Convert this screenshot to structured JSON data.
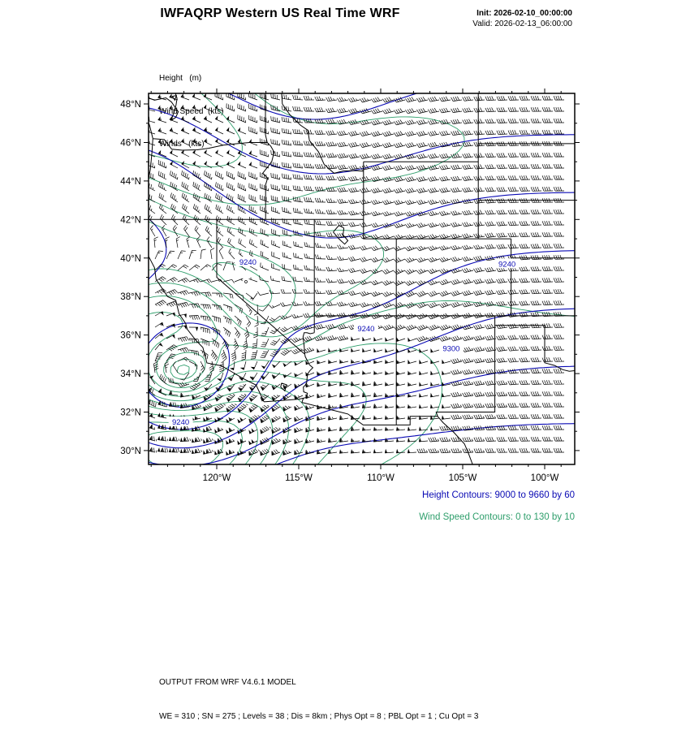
{
  "header": {
    "title": "IWFAQRP Western US Real Time WRF",
    "init_line": "Init: 2026-02-10_00:00:00",
    "valid_line": "Valid: 2026-02-13_06:00:00"
  },
  "field_legend": {
    "line1": "Height   (m)",
    "line2": "Wind Speed  (kts)",
    "line3": "Winds   (kts)"
  },
  "annotations": {
    "height_note": "Height Contours: 9000 to 9660 by 60",
    "wind_note": "Wind Speed Contours: 0 to 130 by 10"
  },
  "footer": {
    "line1": "OUTPUT FROM WRF V4.6.1 MODEL",
    "line2": "WE = 310 ; SN = 275 ; Levels = 38 ; Dis = 8km ; Phys Opt = 8 ; PBL Opt = 1 ; Cu Opt = 3"
  },
  "chart_data": {
    "type": "contour_map",
    "title": "IWFAQRP Western US Real Time WRF",
    "region": "Western US",
    "projection_extent": {
      "lon_min": -124.16,
      "lon_max": -98.17,
      "lat_min": 29.28,
      "lat_max": 48.55
    },
    "x_axis": {
      "ticks": [
        {
          "lon": -120,
          "label": "120°W"
        },
        {
          "lon": -115,
          "label": "115°W"
        },
        {
          "lon": -110,
          "label": "110°W"
        },
        {
          "lon": -105,
          "label": "105°W"
        },
        {
          "lon": -100,
          "label": "100°W"
        }
      ]
    },
    "y_axis": {
      "ticks": [
        {
          "lat": 48,
          "label": "48°N"
        },
        {
          "lat": 46,
          "label": "46°N"
        },
        {
          "lat": 44,
          "label": "44°N"
        },
        {
          "lat": 42,
          "label": "42°N"
        },
        {
          "lat": 40,
          "label": "40°N"
        },
        {
          "lat": 38,
          "label": "38°N"
        },
        {
          "lat": 36,
          "label": "36°N"
        },
        {
          "lat": 34,
          "label": "34°N"
        },
        {
          "lat": 32,
          "label": "32°N"
        },
        {
          "lat": 30,
          "label": "30°N"
        }
      ]
    },
    "height_contours": {
      "units": "m",
      "start": 9000,
      "end": 9660,
      "interval": 60,
      "color": "#0a0ab4",
      "labels": [
        {
          "value": "9240",
          "lon": -118.1,
          "lat": 39.8
        },
        {
          "value": "9240",
          "lon": -110.9,
          "lat": 36.35
        },
        {
          "value": "9300",
          "lon": -105.7,
          "lat": 35.3
        },
        {
          "value": "9240",
          "lon": -102.3,
          "lat": 39.7
        },
        {
          "value": "9240",
          "lon": -122.2,
          "lat": 31.5
        }
      ]
    },
    "wind_speed_contours": {
      "units": "kts",
      "start": 0,
      "end": 130,
      "interval": 10,
      "color": "#2e9e6b"
    },
    "wind_barbs": {
      "units": "kts",
      "color": "#000000"
    }
  }
}
